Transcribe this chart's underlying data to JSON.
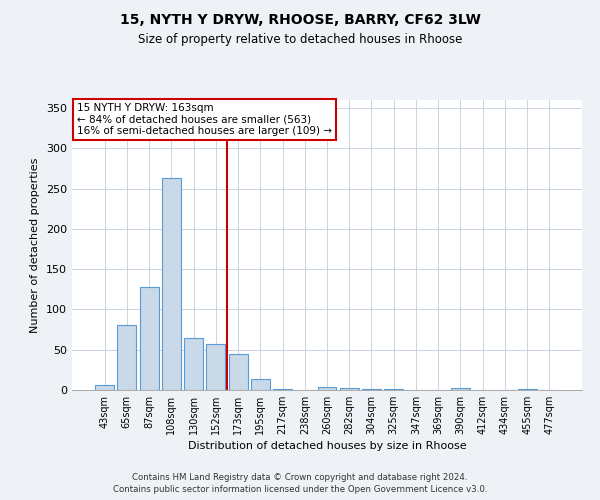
{
  "title1": "15, NYTH Y DRYW, RHOOSE, BARRY, CF62 3LW",
  "title2": "Size of property relative to detached houses in Rhoose",
  "xlabel": "Distribution of detached houses by size in Rhoose",
  "ylabel": "Number of detached properties",
  "bar_labels": [
    "43sqm",
    "65sqm",
    "87sqm",
    "108sqm",
    "130sqm",
    "152sqm",
    "173sqm",
    "195sqm",
    "217sqm",
    "238sqm",
    "260sqm",
    "282sqm",
    "304sqm",
    "325sqm",
    "347sqm",
    "369sqm",
    "390sqm",
    "412sqm",
    "434sqm",
    "455sqm",
    "477sqm"
  ],
  "bar_values": [
    6,
    81,
    128,
    263,
    65,
    57,
    45,
    14,
    1,
    0,
    4,
    3,
    1,
    1,
    0,
    0,
    3,
    0,
    0,
    1,
    0
  ],
  "bar_color": "#c9d9e8",
  "bar_edgecolor": "#5b9bd5",
  "vline_x": 5.5,
  "vline_color": "#cc0000",
  "annotation_title": "15 NYTH Y DRYW: 163sqm",
  "annotation_line1": "← 84% of detached houses are smaller (563)",
  "annotation_line2": "16% of semi-detached houses are larger (109) →",
  "annotation_box_edgecolor": "#cc0000",
  "ylim": [
    0,
    360
  ],
  "yticks": [
    0,
    50,
    100,
    150,
    200,
    250,
    300,
    350
  ],
  "footer1": "Contains HM Land Registry data © Crown copyright and database right 2024.",
  "footer2": "Contains public sector information licensed under the Open Government Licence v3.0.",
  "bg_color": "#eef2f7",
  "plot_bg_color": "#ffffff",
  "grid_color": "#c8d4e0"
}
